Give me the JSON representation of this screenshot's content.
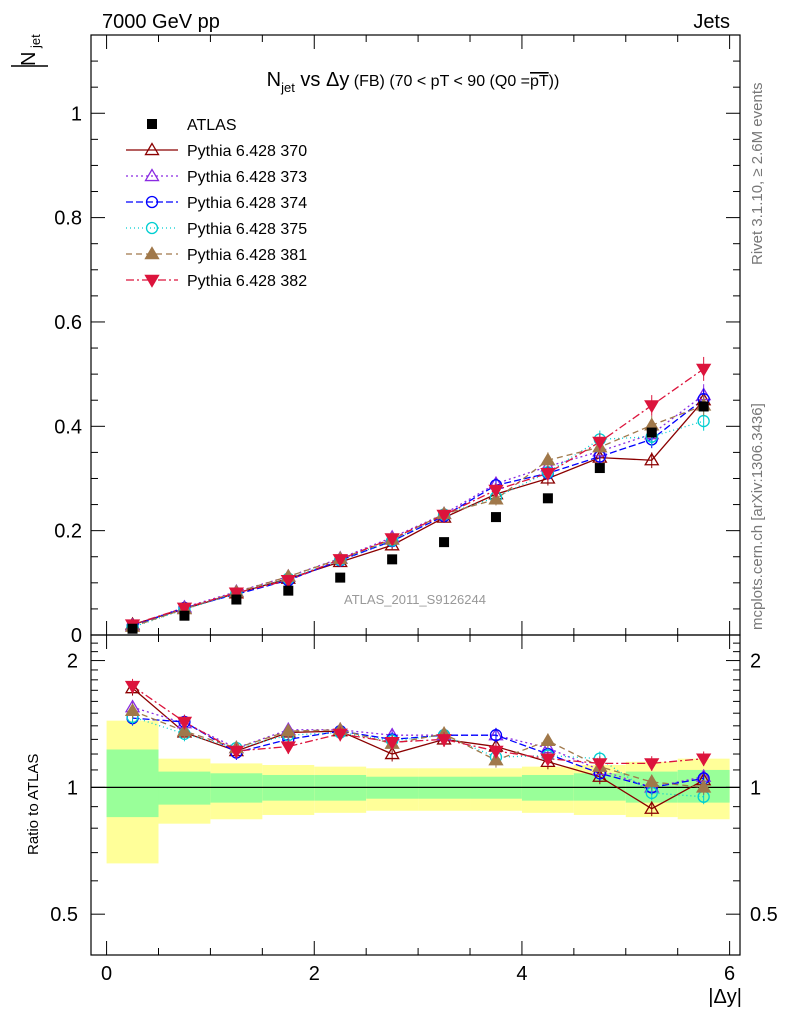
{
  "header": {
    "energy": "7000 GeV pp",
    "category": "Jets"
  },
  "side_labels": {
    "rivet": "Rivet 3.1.10, ≥ 2.6M events",
    "mcplots": "mcplots.cern.ch [arXiv:1306.3436]"
  },
  "watermark": "ATLAS_2011_S9126244",
  "chart_data": {
    "type": "scatter",
    "title": "N_jet vs Δy (FB) (70 < pT < 90 (Q0 = pT̅))",
    "title_parts": {
      "main": "N",
      "main_sub": "jet",
      "vs": " vs Δy",
      "small": " (FB) (70 < pT <  90 (Q0 =",
      "overline": "pT",
      "end": "))"
    },
    "ylabel_top": "N",
    "ylabel_top_sub": "jet",
    "ylabel_ratio": "Ratio to ATLAS",
    "xlabel": "|Δy|",
    "xlim": [
      -0.15,
      6.1
    ],
    "ylim": [
      0,
      1.15
    ],
    "ratio_ylim": [
      0.4,
      2.3
    ],
    "x_ticks": [
      0,
      2,
      4,
      6
    ],
    "y_ticks": [
      0,
      0.2,
      0.4,
      0.6,
      0.8,
      1
    ],
    "y_tick_labels": [
      "0",
      "0.2",
      "0.4",
      "0.6",
      "0.8",
      "1"
    ],
    "ratio_ticks": [
      0.5,
      1,
      2
    ],
    "ratio_tick_labels": [
      "0.5",
      "1",
      "2"
    ],
    "x": [
      0.25,
      0.75,
      1.25,
      1.75,
      2.25,
      2.75,
      3.25,
      3.75,
      4.25,
      4.75,
      5.25,
      5.75
    ],
    "bin_edges": [
      0,
      0.5,
      1,
      1.5,
      2,
      2.5,
      3,
      3.5,
      4,
      4.5,
      5,
      5.5,
      6
    ],
    "band_yellow": [
      [
        0.66,
        1.44
      ],
      [
        0.82,
        1.17
      ],
      [
        0.84,
        1.14
      ],
      [
        0.86,
        1.13
      ],
      [
        0.87,
        1.12
      ],
      [
        0.88,
        1.11
      ],
      [
        0.88,
        1.11
      ],
      [
        0.88,
        1.11
      ],
      [
        0.87,
        1.12
      ],
      [
        0.86,
        1.13
      ],
      [
        0.85,
        1.15
      ],
      [
        0.84,
        1.17
      ]
    ],
    "band_green": [
      [
        0.85,
        1.23
      ],
      [
        0.91,
        1.09
      ],
      [
        0.92,
        1.08
      ],
      [
        0.93,
        1.07
      ],
      [
        0.93,
        1.07
      ],
      [
        0.94,
        1.06
      ],
      [
        0.94,
        1.06
      ],
      [
        0.94,
        1.06
      ],
      [
        0.93,
        1.07
      ],
      [
        0.93,
        1.08
      ],
      [
        0.92,
        1.09
      ],
      [
        0.92,
        1.1
      ]
    ],
    "data_series": {
      "name": "ATLAS",
      "values": [
        0.012,
        0.037,
        0.068,
        0.085,
        0.11,
        0.145,
        0.178,
        0.226,
        0.262,
        0.32,
        0.388,
        0.438
      ]
    },
    "series": [
      {
        "name": "Pythia 6.428 370",
        "color": "#8b0000",
        "dash": "",
        "marker": "triangle-open",
        "values": [
          0.02,
          0.05,
          0.08,
          0.108,
          0.14,
          0.172,
          0.225,
          0.27,
          0.3,
          0.34,
          0.335,
          0.45
        ],
        "ratio": [
          1.72,
          1.35,
          1.22,
          1.35,
          1.36,
          1.2,
          1.3,
          1.25,
          1.15,
          1.06,
          0.89,
          1.04
        ]
      },
      {
        "name": "Pythia 6.428 373",
        "color": "#8a2be2",
        "dash": "2,3",
        "marker": "triangle-open",
        "values": [
          0.018,
          0.053,
          0.083,
          0.112,
          0.147,
          0.187,
          0.232,
          0.29,
          0.323,
          0.352,
          0.385,
          0.46
        ],
        "ratio": [
          1.55,
          1.42,
          1.24,
          1.37,
          1.37,
          1.33,
          1.33,
          1.33,
          1.24,
          1.1,
          1.0,
          1.06
        ]
      },
      {
        "name": "Pythia 6.428 374",
        "color": "#0000ff",
        "dash": "7,3",
        "marker": "circle-open",
        "values": [
          0.017,
          0.052,
          0.078,
          0.105,
          0.143,
          0.18,
          0.228,
          0.287,
          0.31,
          0.342,
          0.375,
          0.452
        ],
        "ratio": [
          1.46,
          1.43,
          1.21,
          1.3,
          1.36,
          1.3,
          1.33,
          1.33,
          1.2,
          1.08,
          1.0,
          1.05
        ]
      },
      {
        "name": "Pythia 6.428 375",
        "color": "#00ced1",
        "dash": "1,3",
        "marker": "circle-open",
        "values": [
          0.015,
          0.049,
          0.08,
          0.108,
          0.144,
          0.181,
          0.231,
          0.264,
          0.312,
          0.375,
          0.38,
          0.41
        ],
        "ratio": [
          1.47,
          1.34,
          1.24,
          1.33,
          1.35,
          1.29,
          1.33,
          1.18,
          1.19,
          1.17,
          0.97,
          0.95
        ]
      },
      {
        "name": "Pythia 6.428 381",
        "color": "#a0784a",
        "dash": "6,4",
        "marker": "triangle-filled",
        "values": [
          0.016,
          0.05,
          0.082,
          0.112,
          0.146,
          0.183,
          0.232,
          0.26,
          0.335,
          0.36,
          0.402,
          0.44
        ],
        "ratio": [
          1.52,
          1.36,
          1.24,
          1.36,
          1.37,
          1.27,
          1.34,
          1.16,
          1.29,
          1.12,
          1.03,
          1.0
        ]
      },
      {
        "name": "Pythia 6.428 382",
        "color": "#dc143c",
        "dash": "8,3,2,3",
        "marker": "triangle-down-filled",
        "values": [
          0.02,
          0.052,
          0.081,
          0.105,
          0.145,
          0.185,
          0.23,
          0.278,
          0.31,
          0.37,
          0.44,
          0.51
        ],
        "ratio": [
          1.74,
          1.43,
          1.22,
          1.25,
          1.34,
          1.28,
          1.3,
          1.22,
          1.17,
          1.14,
          1.14,
          1.17
        ]
      }
    ]
  }
}
